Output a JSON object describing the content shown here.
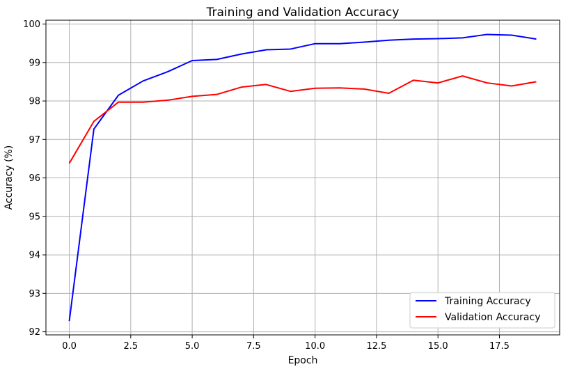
{
  "chart_data": {
    "type": "line",
    "title": "Training and Validation Accuracy",
    "xlabel": "Epoch",
    "ylabel": "Accuracy (%)",
    "xlim": [
      -0.95,
      19.95
    ],
    "ylim": [
      91.92,
      100.1
    ],
    "xticks": [
      0.0,
      2.5,
      5.0,
      7.5,
      10.0,
      12.5,
      15.0,
      17.5
    ],
    "xtick_labels": [
      "0.0",
      "2.5",
      "5.0",
      "7.5",
      "10.0",
      "12.5",
      "15.0",
      "17.5"
    ],
    "yticks": [
      92,
      93,
      94,
      95,
      96,
      97,
      98,
      99,
      100
    ],
    "ytick_labels": [
      "92",
      "93",
      "94",
      "95",
      "96",
      "97",
      "98",
      "99",
      "100"
    ],
    "grid": true,
    "legend_position": "bottom-right",
    "x": [
      0,
      1,
      2,
      3,
      4,
      5,
      6,
      7,
      8,
      9,
      10,
      11,
      12,
      13,
      14,
      15,
      16,
      17,
      18,
      19
    ],
    "series": [
      {
        "name": "Training Accuracy",
        "color": "#0000ff",
        "values": [
          92.28,
          97.27,
          98.15,
          98.52,
          98.76,
          99.05,
          99.08,
          99.22,
          99.33,
          99.35,
          99.49,
          99.49,
          99.53,
          99.58,
          99.61,
          99.62,
          99.64,
          99.73,
          99.71,
          99.61
        ]
      },
      {
        "name": "Validation Accuracy",
        "color": "#ff0000",
        "values": [
          96.38,
          97.47,
          97.97,
          97.97,
          98.02,
          98.12,
          98.17,
          98.36,
          98.43,
          98.25,
          98.33,
          98.34,
          98.31,
          98.2,
          98.54,
          98.47,
          98.65,
          98.47,
          98.39,
          98.5
        ]
      }
    ]
  }
}
